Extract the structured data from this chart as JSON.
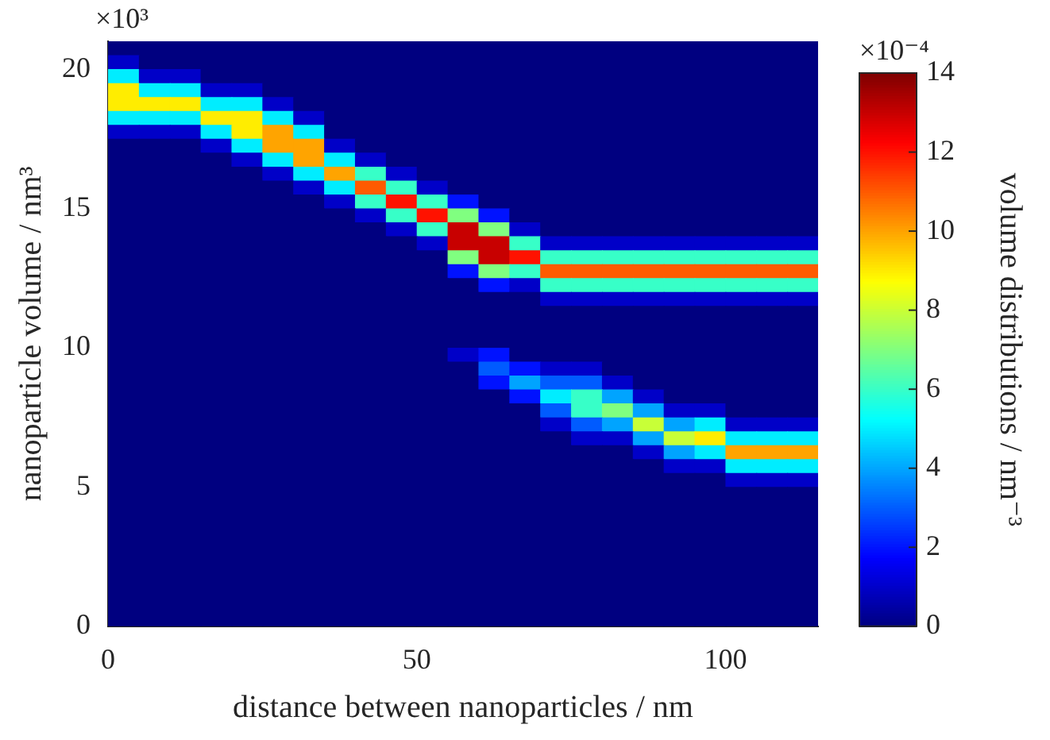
{
  "chart_data": {
    "type": "heatmap",
    "xlabel": "distance between nanoparticles / nm",
    "ylabel": "nanoparticle volume / nm³",
    "clabel": "volume distributions / nm⁻³",
    "annotations": [
      "×10³",
      "×10⁻⁴"
    ],
    "x": [
      2.5,
      7.5,
      12.5,
      17.5,
      22.5,
      27.5,
      32.5,
      37.5,
      42.5,
      47.5,
      52.5,
      57.5,
      62.5,
      67.5,
      72.5,
      77.5,
      82.5,
      87.5,
      92.5,
      97.5,
      102.5,
      107.5,
      112.5
    ],
    "y": [
      20.75,
      20.25,
      19.75,
      19.25,
      18.75,
      18.25,
      17.75,
      17.25,
      16.75,
      16.25,
      15.75,
      15.25,
      14.75,
      14.25,
      13.75,
      13.25,
      12.75,
      12.25,
      11.75,
      11.25,
      10.75,
      10.25,
      9.75,
      9.25,
      8.75,
      8.25,
      7.75,
      7.25,
      6.75,
      6.25,
      5.75,
      5.25,
      4.75,
      4.25,
      3.75,
      3.25,
      2.75,
      2.25,
      1.75,
      1.25,
      0.75,
      0.25
    ],
    "xlim": [
      0,
      115
    ],
    "xticks": [
      0,
      50,
      100
    ],
    "ylim": [
      0,
      21
    ],
    "yticks": [
      0,
      5,
      10,
      15,
      20
    ],
    "clim": [
      0,
      14
    ],
    "cticks": [
      0,
      2,
      4,
      6,
      8,
      10,
      12,
      14
    ],
    "cells": [
      [
        0,
        0,
        0,
        0,
        0,
        0,
        0,
        0,
        0,
        0,
        0,
        0,
        0,
        0,
        0,
        0,
        0,
        0,
        0,
        0,
        0,
        0,
        0
      ],
      [
        1,
        0,
        0,
        0,
        0,
        0,
        0,
        0,
        0,
        0,
        0,
        0,
        0,
        0,
        0,
        0,
        0,
        0,
        0,
        0,
        0,
        0,
        0
      ],
      [
        5,
        1,
        1,
        0,
        0,
        0,
        0,
        0,
        0,
        0,
        0,
        0,
        0,
        0,
        0,
        0,
        0,
        0,
        0,
        0,
        0,
        0,
        0
      ],
      [
        9,
        5,
        5,
        1,
        1,
        0,
        0,
        0,
        0,
        0,
        0,
        0,
        0,
        0,
        0,
        0,
        0,
        0,
        0,
        0,
        0,
        0,
        0
      ],
      [
        9,
        9,
        9,
        5,
        5,
        1,
        0,
        0,
        0,
        0,
        0,
        0,
        0,
        0,
        0,
        0,
        0,
        0,
        0,
        0,
        0,
        0,
        0
      ],
      [
        5,
        5,
        5,
        9,
        9,
        5,
        1,
        0,
        0,
        0,
        0,
        0,
        0,
        0,
        0,
        0,
        0,
        0,
        0,
        0,
        0,
        0,
        0
      ],
      [
        1,
        1,
        1,
        5,
        9,
        10,
        5,
        0,
        0,
        0,
        0,
        0,
        0,
        0,
        0,
        0,
        0,
        0,
        0,
        0,
        0,
        0,
        0
      ],
      [
        0,
        0,
        0,
        1,
        5,
        10,
        10,
        1,
        0,
        0,
        0,
        0,
        0,
        0,
        0,
        0,
        0,
        0,
        0,
        0,
        0,
        0,
        0
      ],
      [
        0,
        0,
        0,
        0,
        1,
        5,
        10,
        5,
        1,
        0,
        0,
        0,
        0,
        0,
        0,
        0,
        0,
        0,
        0,
        0,
        0,
        0,
        0
      ],
      [
        0,
        0,
        0,
        0,
        0,
        1,
        5,
        10,
        6,
        1,
        0,
        0,
        0,
        0,
        0,
        0,
        0,
        0,
        0,
        0,
        0,
        0,
        0
      ],
      [
        0,
        0,
        0,
        0,
        0,
        0,
        1,
        5,
        11,
        6,
        1,
        0,
        0,
        0,
        0,
        0,
        0,
        0,
        0,
        0,
        0,
        0,
        0
      ],
      [
        0,
        0,
        0,
        0,
        0,
        0,
        0,
        1,
        6,
        12,
        6,
        2,
        0,
        0,
        0,
        0,
        0,
        0,
        0,
        0,
        0,
        0,
        0
      ],
      [
        0,
        0,
        0,
        0,
        0,
        0,
        0,
        0,
        1,
        6,
        12,
        7,
        2,
        0,
        0,
        0,
        0,
        0,
        0,
        0,
        0,
        0,
        0
      ],
      [
        0,
        0,
        0,
        0,
        0,
        0,
        0,
        0,
        0,
        1,
        6,
        13,
        7,
        1,
        0,
        0,
        0,
        0,
        0,
        0,
        0,
        0,
        0
      ],
      [
        0,
        0,
        0,
        0,
        0,
        0,
        0,
        0,
        0,
        0,
        1,
        13,
        13,
        6,
        1,
        1,
        1,
        1,
        1,
        1,
        1,
        1,
        1
      ],
      [
        0,
        0,
        0,
        0,
        0,
        0,
        0,
        0,
        0,
        0,
        0,
        7,
        13,
        12,
        6,
        6,
        6,
        6,
        6,
        6,
        6,
        6,
        6
      ],
      [
        0,
        0,
        0,
        0,
        0,
        0,
        0,
        0,
        0,
        0,
        0,
        2,
        7,
        6,
        11,
        11,
        11,
        11,
        11,
        11,
        11,
        11,
        11
      ],
      [
        0,
        0,
        0,
        0,
        0,
        0,
        0,
        0,
        0,
        0,
        0,
        0,
        2,
        1,
        6,
        6,
        6,
        6,
        6,
        6,
        6,
        6,
        6
      ],
      [
        0,
        0,
        0,
        0,
        0,
        0,
        0,
        0,
        0,
        0,
        0,
        0,
        0,
        0,
        1,
        1,
        1,
        1,
        1,
        1,
        1,
        1,
        1
      ],
      [
        0,
        0,
        0,
        0,
        0,
        0,
        0,
        0,
        0,
        0,
        0,
        0,
        0,
        0,
        0,
        0,
        0,
        0,
        0,
        0,
        0,
        0,
        0
      ],
      [
        0,
        0,
        0,
        0,
        0,
        0,
        0,
        0,
        0,
        0,
        0,
        0,
        0,
        0,
        0,
        0,
        0,
        0,
        0,
        0,
        0,
        0,
        0
      ],
      [
        0,
        0,
        0,
        0,
        0,
        0,
        0,
        0,
        0,
        0,
        0,
        0,
        0,
        0,
        0,
        0,
        0,
        0,
        0,
        0,
        0,
        0,
        0
      ],
      [
        0,
        0,
        0,
        0,
        0,
        0,
        0,
        0,
        0,
        0,
        0,
        1,
        2,
        0,
        0,
        0,
        0,
        0,
        0,
        0,
        0,
        0,
        0
      ],
      [
        0,
        0,
        0,
        0,
        0,
        0,
        0,
        0,
        0,
        0,
        0,
        0,
        3,
        2,
        1,
        1,
        0,
        0,
        0,
        0,
        0,
        0,
        0
      ],
      [
        0,
        0,
        0,
        0,
        0,
        0,
        0,
        0,
        0,
        0,
        0,
        0,
        2,
        4,
        3,
        3,
        1,
        0,
        0,
        0,
        0,
        0,
        0
      ],
      [
        0,
        0,
        0,
        0,
        0,
        0,
        0,
        0,
        0,
        0,
        0,
        0,
        0,
        2,
        5,
        6,
        4,
        1,
        0,
        0,
        0,
        0,
        0
      ],
      [
        0,
        0,
        0,
        0,
        0,
        0,
        0,
        0,
        0,
        0,
        0,
        0,
        0,
        0,
        3,
        6,
        7,
        4,
        1,
        1,
        0,
        0,
        0
      ],
      [
        0,
        0,
        0,
        0,
        0,
        0,
        0,
        0,
        0,
        0,
        0,
        0,
        0,
        0,
        1,
        3,
        4,
        8,
        4,
        5,
        1,
        1,
        1
      ],
      [
        0,
        0,
        0,
        0,
        0,
        0,
        0,
        0,
        0,
        0,
        0,
        0,
        0,
        0,
        0,
        1,
        1,
        4,
        8,
        9,
        5,
        5,
        5
      ],
      [
        0,
        0,
        0,
        0,
        0,
        0,
        0,
        0,
        0,
        0,
        0,
        0,
        0,
        0,
        0,
        0,
        0,
        1,
        4,
        5,
        10,
        10,
        10
      ],
      [
        0,
        0,
        0,
        0,
        0,
        0,
        0,
        0,
        0,
        0,
        0,
        0,
        0,
        0,
        0,
        0,
        0,
        0,
        1,
        1,
        5,
        5,
        5
      ],
      [
        0,
        0,
        0,
        0,
        0,
        0,
        0,
        0,
        0,
        0,
        0,
        0,
        0,
        0,
        0,
        0,
        0,
        0,
        0,
        0,
        1,
        1,
        1
      ],
      [
        0,
        0,
        0,
        0,
        0,
        0,
        0,
        0,
        0,
        0,
        0,
        0,
        0,
        0,
        0,
        0,
        0,
        0,
        0,
        0,
        0,
        0,
        0
      ],
      [
        0,
        0,
        0,
        0,
        0,
        0,
        0,
        0,
        0,
        0,
        0,
        0,
        0,
        0,
        0,
        0,
        0,
        0,
        0,
        0,
        0,
        0,
        0
      ],
      [
        0,
        0,
        0,
        0,
        0,
        0,
        0,
        0,
        0,
        0,
        0,
        0,
        0,
        0,
        0,
        0,
        0,
        0,
        0,
        0,
        0,
        0,
        0
      ],
      [
        0,
        0,
        0,
        0,
        0,
        0,
        0,
        0,
        0,
        0,
        0,
        0,
        0,
        0,
        0,
        0,
        0,
        0,
        0,
        0,
        0,
        0,
        0
      ],
      [
        0,
        0,
        0,
        0,
        0,
        0,
        0,
        0,
        0,
        0,
        0,
        0,
        0,
        0,
        0,
        0,
        0,
        0,
        0,
        0,
        0,
        0,
        0
      ],
      [
        0,
        0,
        0,
        0,
        0,
        0,
        0,
        0,
        0,
        0,
        0,
        0,
        0,
        0,
        0,
        0,
        0,
        0,
        0,
        0,
        0,
        0,
        0
      ],
      [
        0,
        0,
        0,
        0,
        0,
        0,
        0,
        0,
        0,
        0,
        0,
        0,
        0,
        0,
        0,
        0,
        0,
        0,
        0,
        0,
        0,
        0,
        0
      ],
      [
        0,
        0,
        0,
        0,
        0,
        0,
        0,
        0,
        0,
        0,
        0,
        0,
        0,
        0,
        0,
        0,
        0,
        0,
        0,
        0,
        0,
        0,
        0
      ],
      [
        0,
        0,
        0,
        0,
        0,
        0,
        0,
        0,
        0,
        0,
        0,
        0,
        0,
        0,
        0,
        0,
        0,
        0,
        0,
        0,
        0,
        0,
        0
      ],
      [
        0,
        0,
        0,
        0,
        0,
        0,
        0,
        0,
        0,
        0,
        0,
        0,
        0,
        0,
        0,
        0,
        0,
        0,
        0,
        0,
        0,
        0,
        0
      ]
    ]
  }
}
